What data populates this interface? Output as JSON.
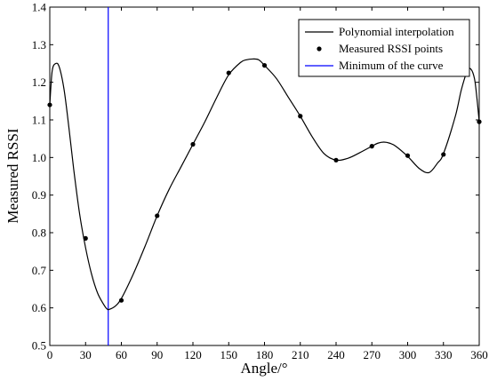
{
  "chart_data": {
    "type": "line",
    "xlabel": "Angle/°",
    "ylabel": "Measured RSSI",
    "xlim": [
      0,
      360
    ],
    "ylim": [
      0.5,
      1.4
    ],
    "x_ticks": [
      0,
      30,
      60,
      90,
      120,
      150,
      180,
      210,
      240,
      270,
      300,
      330,
      360
    ],
    "y_ticks": [
      0.5,
      0.6,
      0.7,
      0.8,
      0.9,
      1.0,
      1.1,
      1.2,
      1.3,
      1.4
    ],
    "x_tick_labels": [
      "0",
      "30",
      "60",
      "90",
      "120",
      "150",
      "180",
      "210",
      "240",
      "270",
      "300",
      "330",
      "360"
    ],
    "y_tick_labels": [
      "0.5",
      "0.6",
      "0.7",
      "0.8",
      "0.9",
      "1.0",
      "1.1",
      "1.2",
      "1.3",
      "1.4"
    ],
    "grid": false,
    "legend_position": "top-right",
    "series": [
      {
        "name": "Polynomial interpolation",
        "kind": "line",
        "color": "#000000",
        "x": [
          0,
          2,
          5,
          8,
          12,
          16,
          20,
          25,
          30,
          35,
          40,
          45,
          48,
          50,
          55,
          60,
          70,
          80,
          90,
          100,
          110,
          120,
          130,
          140,
          150,
          160,
          165,
          170,
          175,
          180,
          190,
          200,
          210,
          220,
          230,
          240,
          250,
          260,
          270,
          275,
          280,
          285,
          290,
          300,
          310,
          318,
          325,
          330,
          340,
          345,
          350,
          353,
          356,
          358,
          360
        ],
        "y": [
          1.14,
          1.23,
          1.25,
          1.24,
          1.18,
          1.08,
          0.97,
          0.85,
          0.76,
          0.69,
          0.64,
          0.61,
          0.597,
          0.596,
          0.605,
          0.625,
          0.69,
          0.765,
          0.845,
          0.915,
          0.975,
          1.035,
          1.095,
          1.16,
          1.22,
          1.253,
          1.26,
          1.262,
          1.26,
          1.245,
          1.21,
          1.16,
          1.11,
          1.055,
          1.01,
          0.993,
          0.998,
          1.013,
          1.03,
          1.038,
          1.041,
          1.038,
          1.03,
          1.003,
          0.97,
          0.96,
          0.985,
          1.01,
          1.11,
          1.18,
          1.23,
          1.235,
          1.21,
          1.16,
          1.095
        ]
      },
      {
        "name": "Measured RSSI points",
        "kind": "scatter",
        "color": "#000000",
        "x": [
          0,
          30,
          60,
          90,
          120,
          150,
          180,
          210,
          240,
          270,
          300,
          330,
          360
        ],
        "y": [
          1.14,
          0.785,
          0.62,
          0.845,
          1.035,
          1.225,
          1.245,
          1.11,
          0.993,
          1.03,
          1.005,
          1.008,
          1.095
        ]
      },
      {
        "name": "Minimum of the curve",
        "kind": "vline",
        "color": "#0000ff",
        "x": 49
      }
    ]
  }
}
